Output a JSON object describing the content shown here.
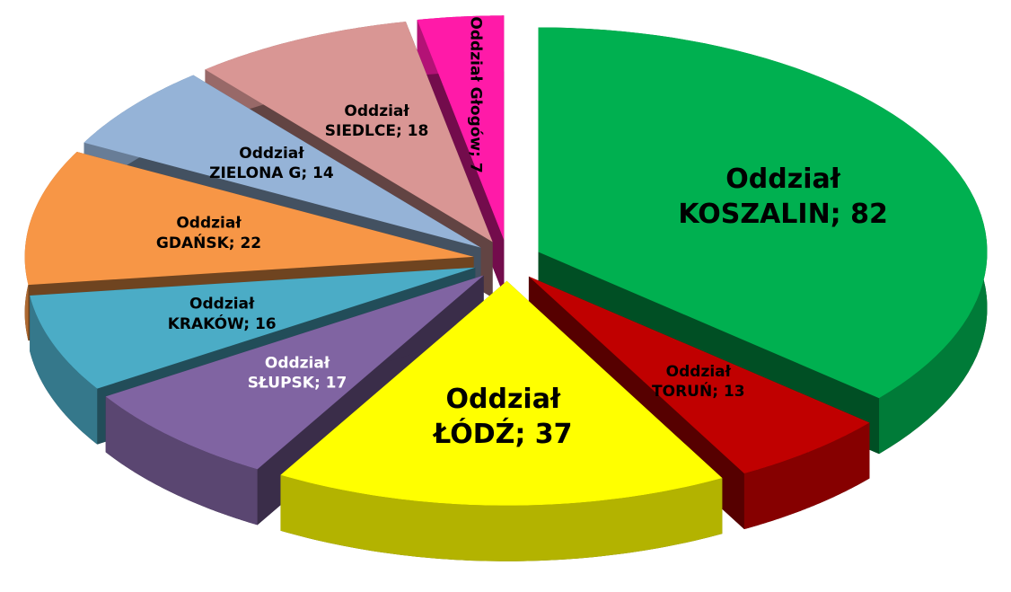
{
  "chart_data": {
    "type": "pie",
    "three_d": true,
    "exploded": true,
    "value_labels": [
      "Oddział KOSZALIN; 82",
      "Oddział TORUŃ; 13",
      "Oddział ŁÓDŹ; 37",
      "Oddział SŁUPSK; 17",
      "Oddział KRAKÓW; 16",
      "Oddział GDAŃSK; 22",
      "Oddział ZIELONA G; 14",
      "Oddział SIEDLCE; 18",
      "Oddział Głogów; 7"
    ],
    "values": [
      82,
      13,
      37,
      17,
      16,
      22,
      14,
      18,
      7
    ],
    "colors": [
      "#00b050",
      "#c00000",
      "#ffff00",
      "#8064a2",
      "#4bacc6",
      "#f79646",
      "#95b3d7",
      "#d99694",
      "#ff1aa8"
    ],
    "label_colors": [
      "#000000",
      "#000000",
      "#000000",
      "#ffffff",
      "#000000",
      "#000000",
      "#000000",
      "#000000",
      "#000000"
    ],
    "legend": false
  }
}
